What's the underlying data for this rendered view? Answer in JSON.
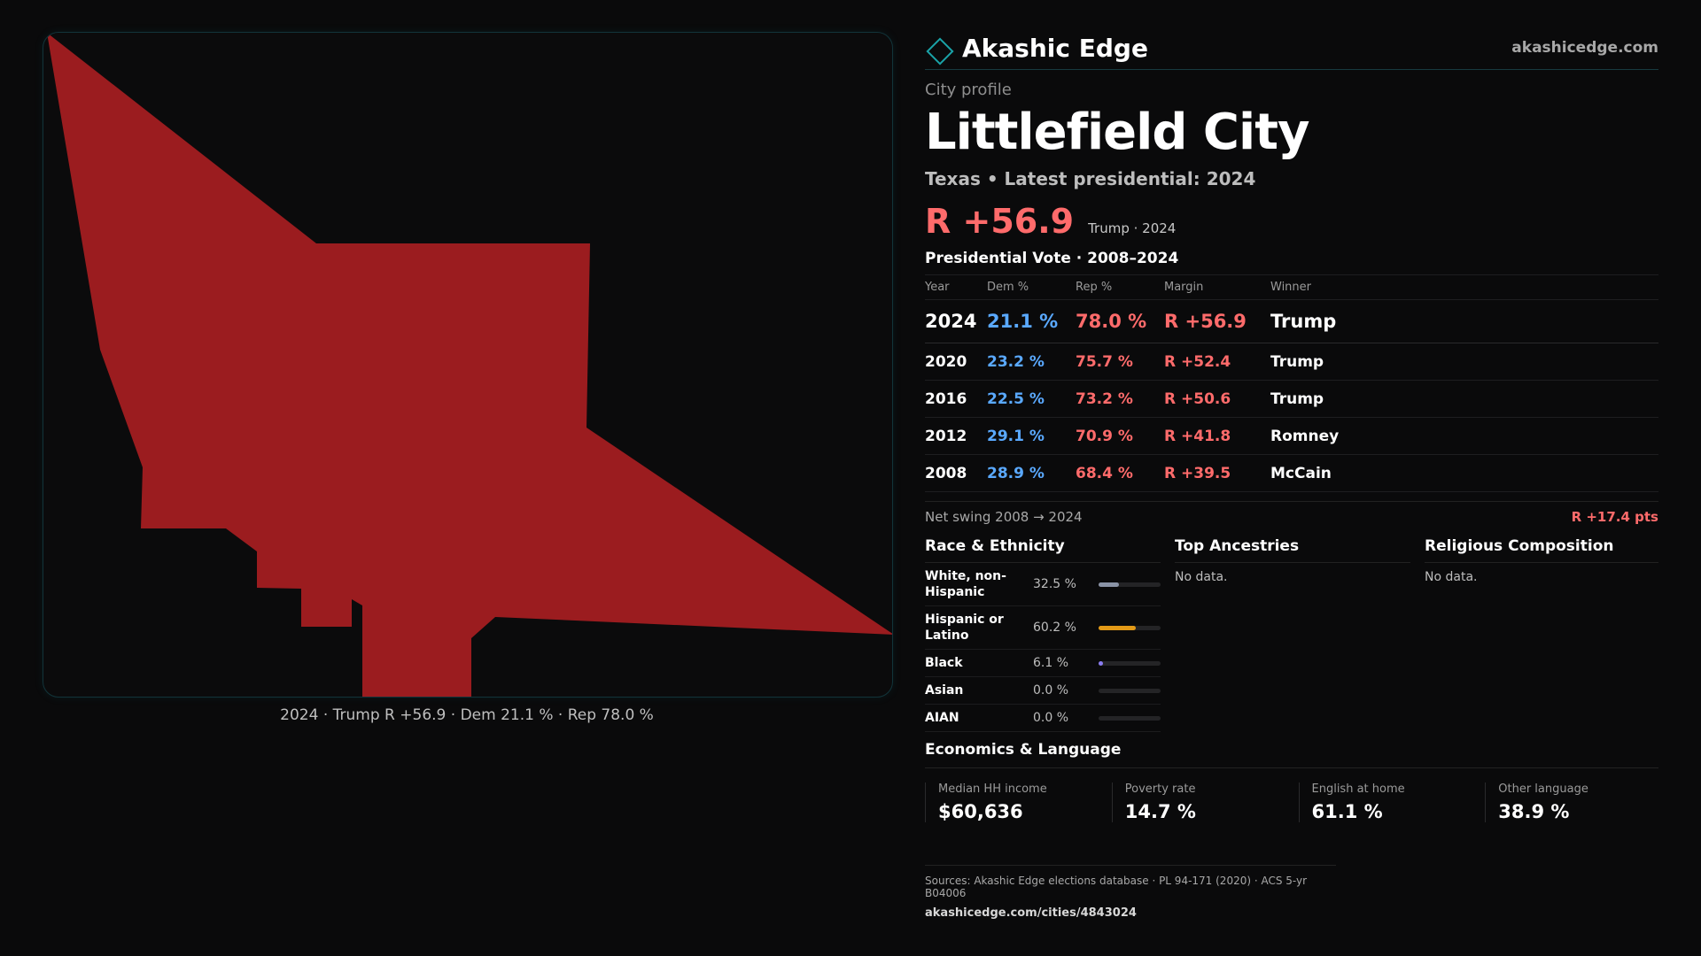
{
  "brand": {
    "name": "Akashic Edge",
    "url": "akashicedge.com",
    "accent": "#1aa3a8"
  },
  "profile": {
    "kicker": "City profile",
    "city": "Littlefield City",
    "subtitle": "Texas • Latest presidential: 2024",
    "margin": "R +56.9",
    "margin_note": "Trump · 2024"
  },
  "map": {
    "fill": "#9b1c1f",
    "caption": "2024 · Trump R +56.9 · Dem 21.1 % · Rep 78.0 %"
  },
  "votes": {
    "title": "Presidential Vote · 2008–2024",
    "headers": {
      "year": "Year",
      "dem": "Dem %",
      "rep": "Rep %",
      "margin": "Margin",
      "winner": "Winner"
    },
    "rows": [
      {
        "year": "2024",
        "dem": "21.1 %",
        "rep": "78.0 %",
        "margin": "R +56.9",
        "winner": "Trump"
      },
      {
        "year": "2020",
        "dem": "23.2 %",
        "rep": "75.7 %",
        "margin": "R +52.4",
        "winner": "Trump"
      },
      {
        "year": "2016",
        "dem": "22.5 %",
        "rep": "73.2 %",
        "margin": "R +50.6",
        "winner": "Trump"
      },
      {
        "year": "2012",
        "dem": "29.1 %",
        "rep": "70.9 %",
        "margin": "R +41.8",
        "winner": "Romney"
      },
      {
        "year": "2008",
        "dem": "28.9 %",
        "rep": "68.4 %",
        "margin": "R +39.5",
        "winner": "McCain"
      }
    ],
    "swing_label": "Net swing 2008 → 2024",
    "swing_value": "R +17.4 pts",
    "dem_color": "#5aa9ff",
    "rep_color": "#ff6b6b"
  },
  "race": {
    "title": "Race & Ethnicity",
    "rows": [
      {
        "label": "White, non-Hispanic",
        "value": "32.5 %",
        "pct": 32.5,
        "color": "#8a93a6"
      },
      {
        "label": "Hispanic or Latino",
        "value": "60.2 %",
        "pct": 60.2,
        "color": "#e39a17"
      },
      {
        "label": "Black",
        "value": "6.1 %",
        "pct": 6.1,
        "color": "#8a7cf0"
      },
      {
        "label": "Asian",
        "value": "0.0 %",
        "pct": 0.0,
        "color": "#5aa9ff"
      },
      {
        "label": "AIAN",
        "value": "0.0 %",
        "pct": 0.0,
        "color": "#5aa9ff"
      }
    ]
  },
  "ancestries": {
    "title": "Top Ancestries",
    "empty": "No data."
  },
  "religion": {
    "title": "Religious Composition",
    "empty": "No data."
  },
  "economics": {
    "title": "Economics & Language",
    "cards": [
      {
        "label": "Median HH income",
        "value": "$60,636"
      },
      {
        "label": "Poverty rate",
        "value": "14.7 %"
      },
      {
        "label": "English at home",
        "value": "61.1 %"
      },
      {
        "label": "Other language",
        "value": "38.9 %"
      }
    ]
  },
  "footer": {
    "sources": "Sources: Akashic Edge elections database · PL 94-171 (2020) · ACS 5-yr B04006",
    "url": "akashicedge.com/cities/4843024"
  }
}
